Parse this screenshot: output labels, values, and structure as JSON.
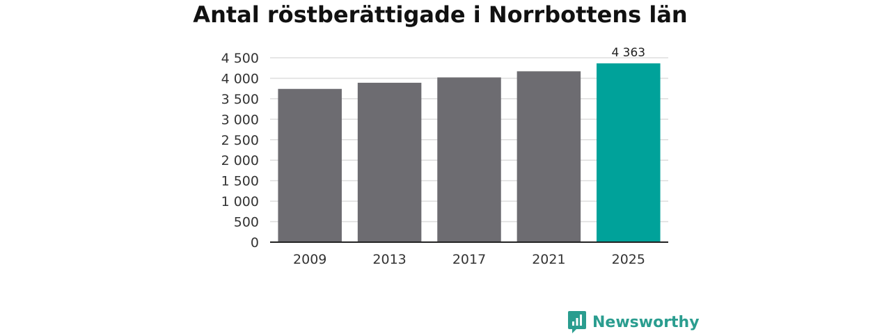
{
  "chart_data": {
    "type": "bar",
    "title": "Antal röstberättigade i Norrbottens län",
    "categories": [
      "2009",
      "2013",
      "2017",
      "2021",
      "2025"
    ],
    "values": [
      3740,
      3890,
      4020,
      4170,
      4363
    ],
    "data_labels": [
      "",
      "",
      "",
      "",
      "4 363"
    ],
    "ylim": [
      0,
      4500
    ],
    "yticks": [
      0,
      500,
      1000,
      1500,
      2000,
      2500,
      3000,
      3500,
      4000,
      4500
    ],
    "ytick_labels": [
      "0",
      "500",
      "1 000",
      "1 500",
      "2 000",
      "2 500",
      "3 000",
      "3 500",
      "4 000",
      "4 500"
    ],
    "grid": true,
    "colors": {
      "bar": "#6d6c71",
      "highlight": "#00a29a",
      "grid": "#dddddd",
      "axis": "#222222"
    },
    "highlight_index": 4
  },
  "brand": {
    "name": "Newsworthy",
    "icon": "newsworthy-logo-icon",
    "color": "#2a9d8f"
  }
}
